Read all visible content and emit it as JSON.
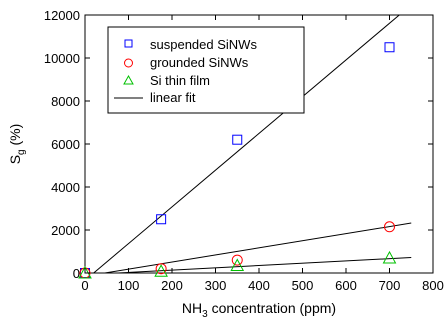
{
  "chart_data": {
    "type": "scatter",
    "xlabel": "NH",
    "xlabel_sub": "3",
    "xlabel_rest": " concentration (ppm)",
    "ylabel": "S",
    "ylabel_sub": "g",
    "ylabel_rest": " (%)",
    "xlim": [
      0,
      800
    ],
    "ylim": [
      0,
      12000
    ],
    "xticks": [
      0,
      100,
      200,
      300,
      400,
      500,
      600,
      700,
      800
    ],
    "yticks": [
      0,
      2000,
      4000,
      6000,
      8000,
      10000,
      12000
    ],
    "grid": false,
    "legend_position": "top-left",
    "series": [
      {
        "name": "suspended SiNWs",
        "marker": "square",
        "color": "#0000ff",
        "points": [
          [
            0,
            0
          ],
          [
            175,
            2500
          ],
          [
            350,
            6200
          ],
          [
            700,
            10500
          ]
        ],
        "fit": {
          "slope": 17.08,
          "intercept": -340,
          "x_range": [
            0,
            750
          ]
        }
      },
      {
        "name": "grounded SiNWs",
        "marker": "circle",
        "color": "#ff0000",
        "points": [
          [
            0,
            0
          ],
          [
            175,
            200
          ],
          [
            350,
            600
          ],
          [
            700,
            2150
          ]
        ],
        "fit": {
          "slope": 3.3,
          "intercept": -150,
          "x_range": [
            0,
            750
          ]
        }
      },
      {
        "name": "Si thin film",
        "marker": "triangle",
        "color": "#00c000",
        "points": [
          [
            0,
            0
          ],
          [
            175,
            80
          ],
          [
            350,
            350
          ],
          [
            700,
            700
          ]
        ],
        "fit": {
          "slope": 1.07,
          "intercept": -80,
          "x_range": [
            0,
            750
          ]
        }
      }
    ],
    "fit_legend": {
      "name": "linear fit",
      "color": "#000000"
    }
  }
}
